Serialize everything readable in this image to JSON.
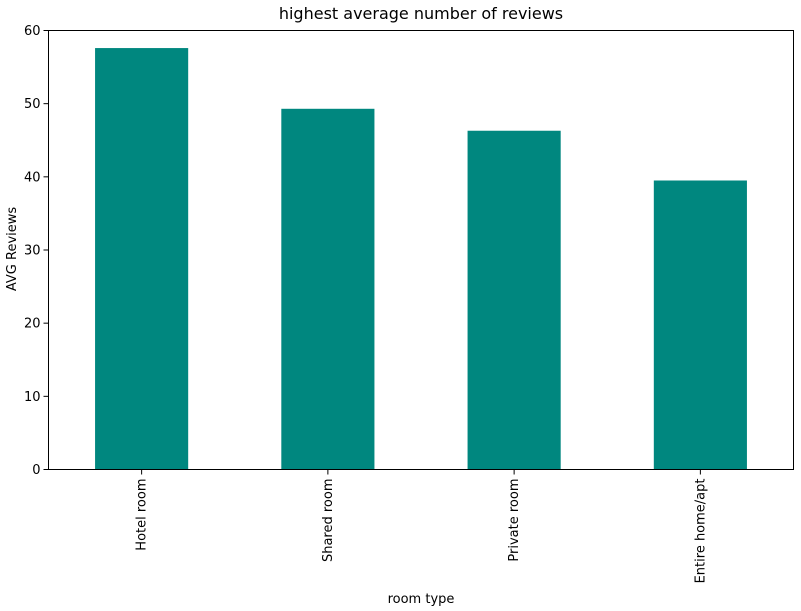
{
  "chart_data": {
    "type": "bar",
    "title": "highest average number of reviews",
    "xlabel": "room type",
    "ylabel": "AVG Reviews",
    "categories": [
      "Hotel room",
      "Shared room",
      "Private room",
      "Entire home/apt"
    ],
    "values": [
      57.6,
      49.3,
      46.3,
      39.5
    ],
    "ylim": [
      0,
      60
    ],
    "yticks": [
      "0",
      "10",
      "20",
      "30",
      "40",
      "50",
      "60"
    ],
    "bar_color": "#00877f",
    "grid": false,
    "legend": "none"
  }
}
